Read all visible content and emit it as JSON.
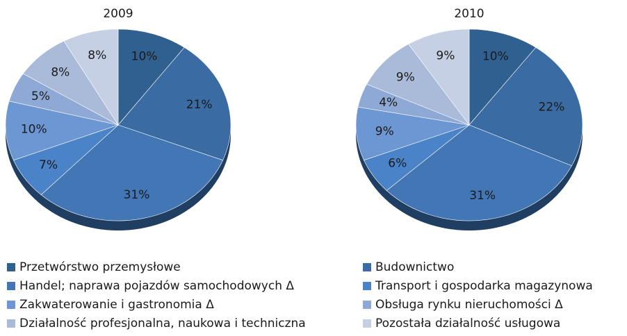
{
  "chart_data": {
    "type": "pie",
    "categories": [
      "Przetwórstwo przemysłowe",
      "Budownictwo",
      "Handel; naprawa pojazdów samochodowych Δ",
      "Transport i gospodarka magazynowa",
      "Zakwaterowanie i gastronomia Δ",
      "Obsługa rynku nieruchomości Δ",
      "Działalność profesjonalna, naukowa i techniczna",
      "Pozostała działalność usługowa"
    ],
    "colors": [
      "#30608f",
      "#3a6ba2",
      "#4376b5",
      "#4b83c9",
      "#6c97d3",
      "#8ea9d6",
      "#a9bbd9",
      "#c5d0e4"
    ],
    "series": [
      {
        "name": "2009",
        "values": [
          10,
          21,
          31,
          7,
          10,
          5,
          8,
          8
        ],
        "value_labels": [
          "10%",
          "21%",
          "31%",
          "7%",
          "10%",
          "5%",
          "8%",
          "8%"
        ]
      },
      {
        "name": "2010",
        "values": [
          10,
          22,
          31,
          6,
          9,
          4,
          9,
          9
        ],
        "value_labels": [
          "10%",
          "22%",
          "31%",
          "6%",
          "9%",
          "4%",
          "9%",
          "9%"
        ]
      }
    ]
  }
}
